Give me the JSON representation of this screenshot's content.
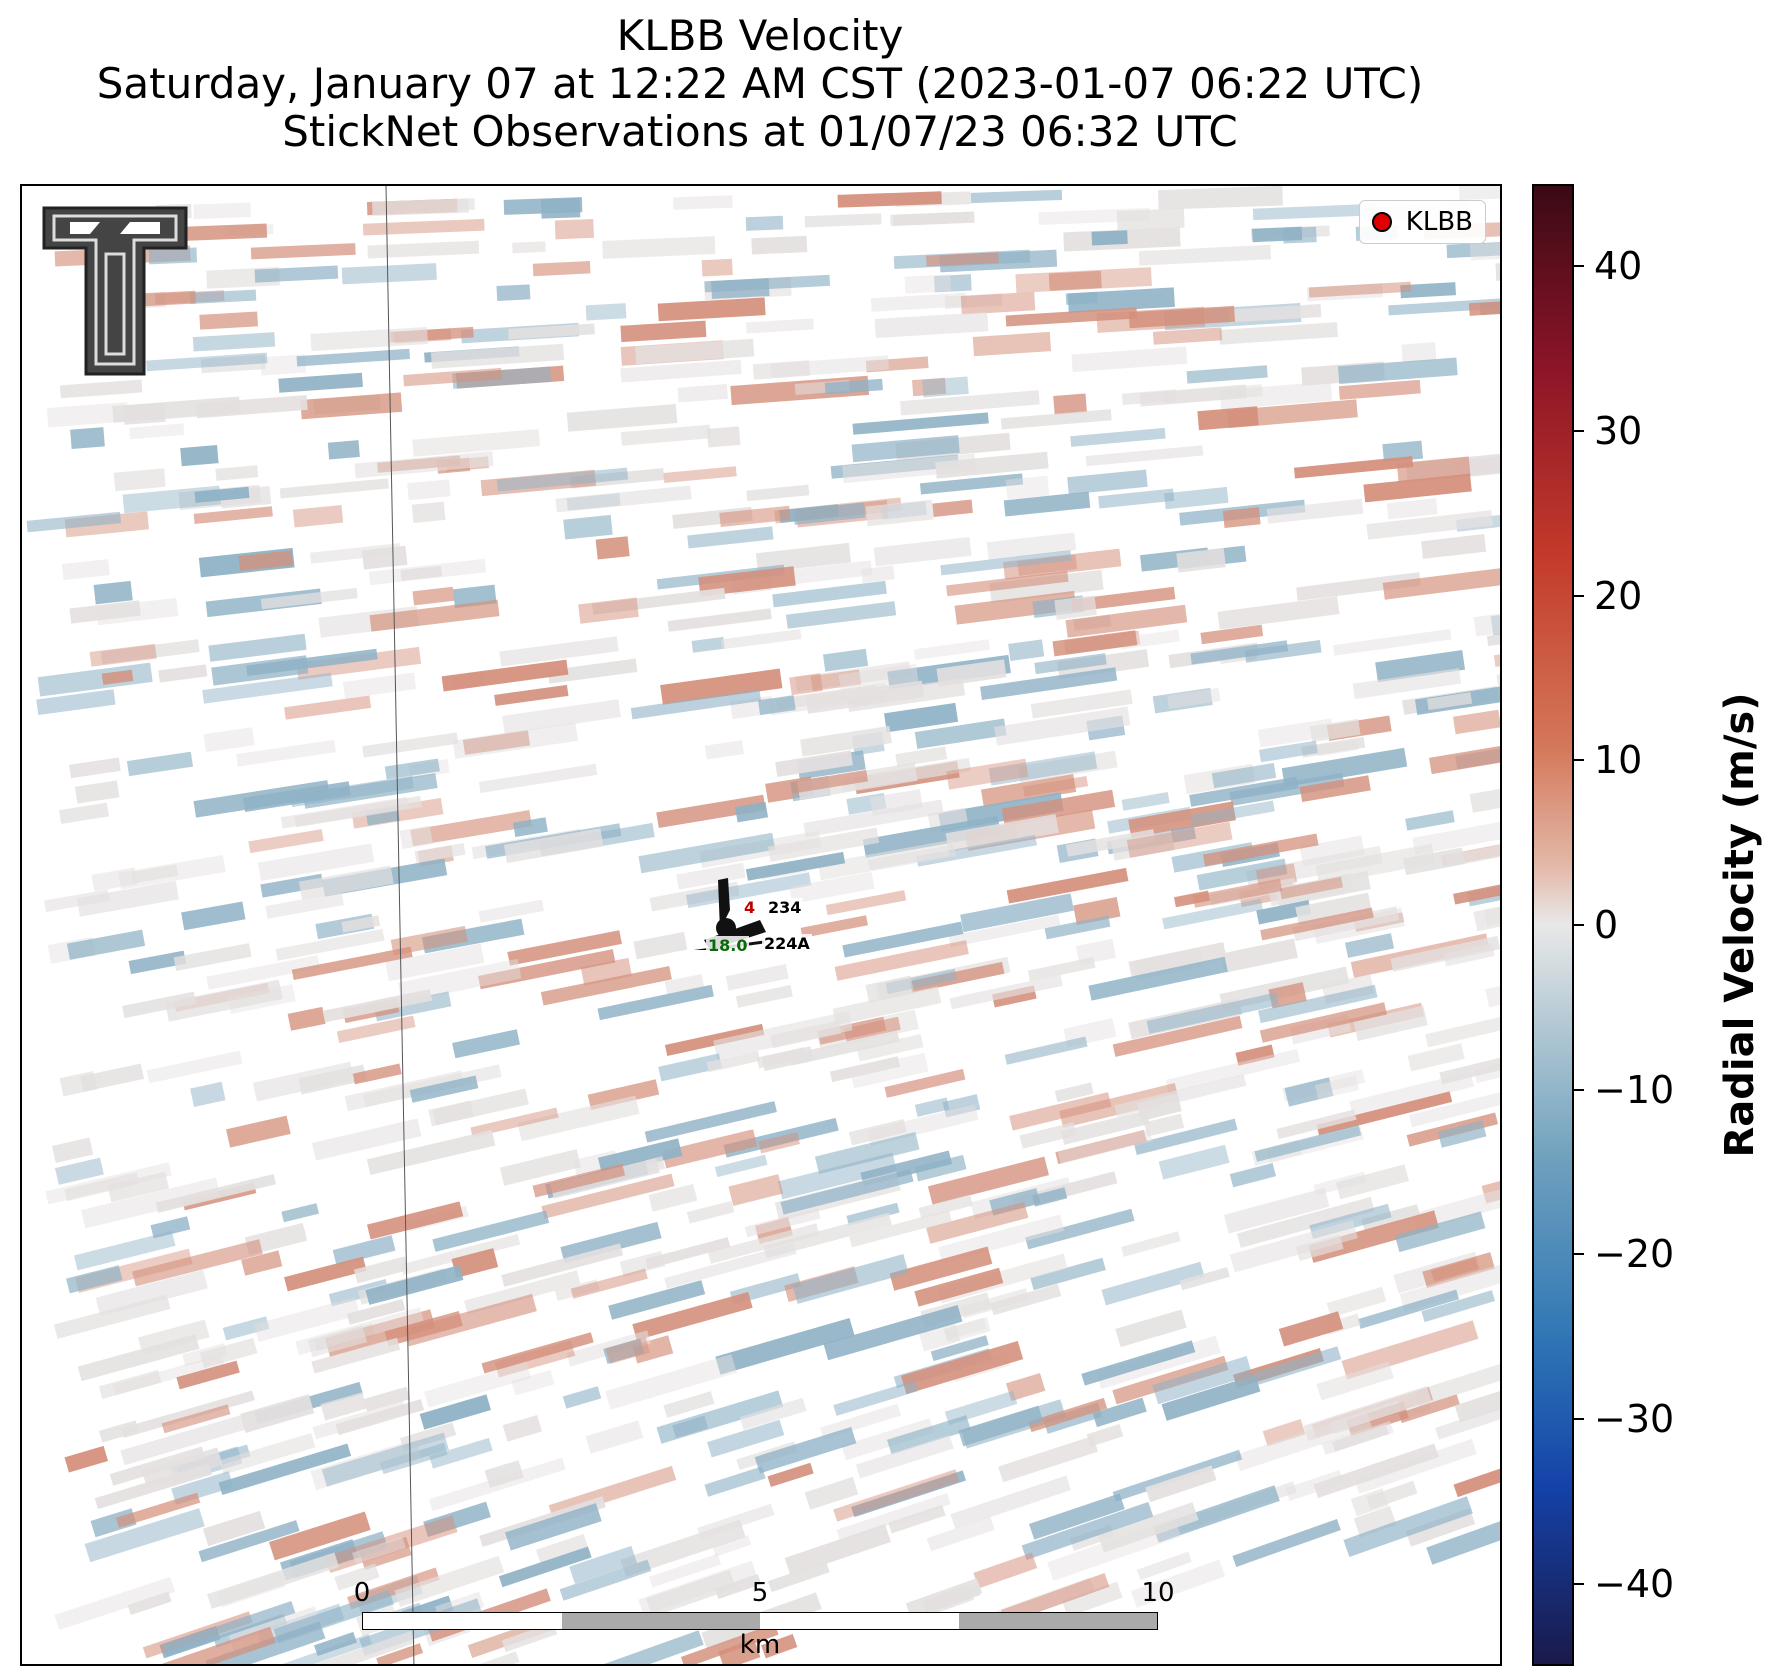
{
  "title": {
    "line1": "KLBB Velocity",
    "line2": "Saturday, January 07 at 12:22 AM CST (2023-01-07 06:22 UTC)",
    "line3": "StickNet Observations at 01/07/23 06:32 UTC"
  },
  "legend": {
    "label": "KLBB",
    "marker_color": "#e00000"
  },
  "colorbar": {
    "label": "Radial Velocity (m/s)",
    "ticks": [
      "40",
      "30",
      "20",
      "10",
      "0",
      "−10",
      "−20",
      "−30",
      "−40"
    ],
    "range": [
      -45,
      45
    ]
  },
  "stations": {
    "s1_id": "234",
    "s1_value": "4",
    "s2_id": "224A",
    "s2_value": "18.0"
  },
  "scalebar": {
    "tick0": "0",
    "tick5": "5",
    "tick10": "10",
    "unit": "km"
  },
  "colors": {
    "positive": "#d4907c",
    "negative": "#8fb2c6",
    "neutral": "#e4e0e0"
  },
  "icons": [
    "texas-tech-logo-icon",
    "station-barb-icon"
  ]
}
